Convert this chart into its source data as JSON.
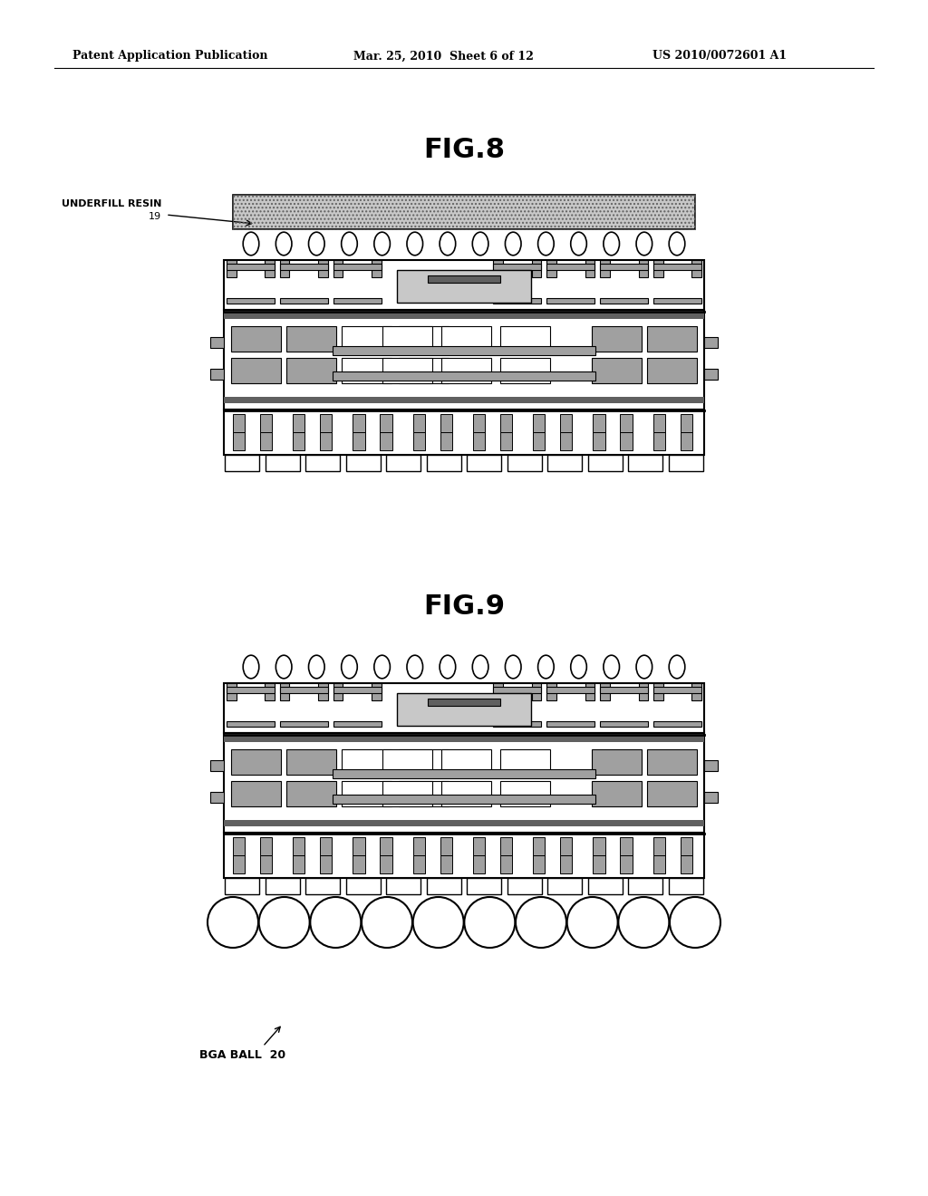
{
  "bg_color": "#ffffff",
  "header_left": "Patent Application Publication",
  "header_mid": "Mar. 25, 2010  Sheet 6 of 12",
  "header_right": "US 2010/0072601 A1",
  "fig8_title": "FIG.8",
  "fig9_title": "FIG.9",
  "label_underfill": "UNDERFILL RESIN",
  "label_underfill_num": "19",
  "label_bga": "BGA BALL  20",
  "light_gray": "#c8c8c8",
  "mid_gray": "#a0a0a0",
  "dark_gray": "#606060",
  "black": "#000000",
  "white": "#ffffff",
  "hatch_gray": "#b0b0b0"
}
